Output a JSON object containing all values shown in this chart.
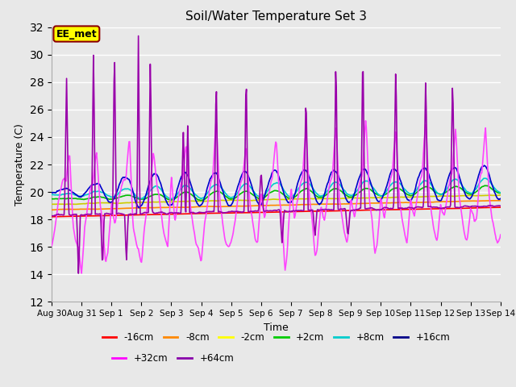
{
  "title": "Soil/Water Temperature Set 3",
  "xlabel": "Time",
  "ylabel": "Temperature (C)",
  "ylim": [
    12,
    32
  ],
  "xlim": [
    0,
    15
  ],
  "yticks": [
    12,
    14,
    16,
    18,
    20,
    22,
    24,
    26,
    28,
    30,
    32
  ],
  "xtick_labels": [
    "Aug 30",
    "Aug 31",
    "Sep 1",
    "Sep 2",
    "Sep 3",
    "Sep 4",
    "Sep 5",
    "Sep 6",
    "Sep 7",
    "Sep 8",
    "Sep 9",
    "Sep 10",
    "Sep 11",
    "Sep 12",
    "Sep 13",
    "Sep 14"
  ],
  "xtick_positions": [
    0,
    1,
    2,
    3,
    4,
    5,
    6,
    7,
    8,
    9,
    10,
    11,
    12,
    13,
    14,
    15
  ],
  "background_color": "#e8e8e8",
  "plot_bg_color": "#e8e8e8",
  "grid_color": "#ffffff",
  "annotation_text": "EE_met",
  "annotation_bg": "#ffff00",
  "annotation_border": "#8b0000",
  "series": {
    "-16cm": {
      "color": "#ff0000",
      "linewidth": 1.2
    },
    "-8cm": {
      "color": "#ff8800",
      "linewidth": 1.2
    },
    "-2cm": {
      "color": "#cccc00",
      "linewidth": 1.2
    },
    "+2cm": {
      "color": "#00bb00",
      "linewidth": 1.2
    },
    "+8cm": {
      "color": "#00cccc",
      "linewidth": 1.2
    },
    "+16cm": {
      "color": "#0000cc",
      "linewidth": 1.2
    },
    "+32cm": {
      "color": "#ff44ff",
      "linewidth": 1.2
    },
    "+64cm": {
      "color": "#9900aa",
      "linewidth": 1.2
    }
  },
  "legend_order": [
    "-16cm",
    "-8cm",
    "-2cm",
    "+2cm",
    "+8cm",
    "+16cm",
    "+32cm",
    "+64cm"
  ],
  "legend_colors": {
    "-16cm": "#ff0000",
    "-8cm": "#ff8800",
    "-2cm": "#ffff00",
    "+2cm": "#00cc00",
    "+8cm": "#00cccc",
    "+16cm": "#000088",
    "+32cm": "#ff00ff",
    "+64cm": "#8800aa"
  },
  "figsize": [
    6.4,
    4.8
  ],
  "dpi": 100
}
